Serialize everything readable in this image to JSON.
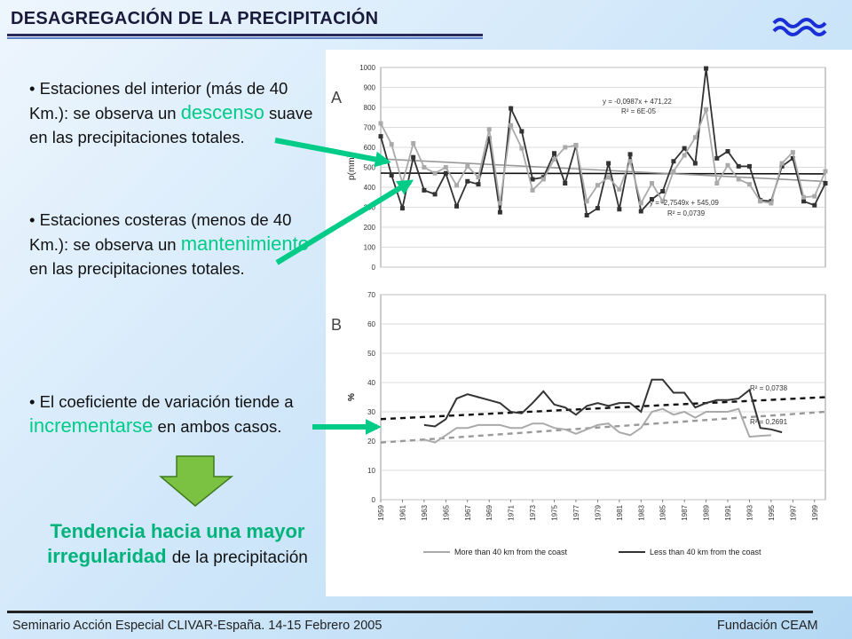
{
  "header": {
    "title": "DESAGREGACIÓN DE LA PRECIPITACIÓN",
    "logo_icon": "wave-logo-icon",
    "accent_color": "#1a2fd6"
  },
  "bullets": [
    {
      "prefix": "• Estaciones  del interior (más de 40 Km.): se observa un",
      "highlight": "descenso",
      "suffix": "suave en las precipitaciones totales."
    },
    {
      "prefix": "• Estaciones costeras (menos de 40 Km.): se observa un",
      "highlight": "mantenimiento",
      "suffix": "en las precipitaciones totales."
    },
    {
      "prefix": "• El coeficiente de variación tiende a",
      "highlight": "incrementarse",
      "suffix": "en ambos casos."
    }
  ],
  "conclusion": {
    "bold": "Tendencia hacia una mayor irregularidad",
    "normal": "de la precipitación"
  },
  "footer": {
    "left": "Seminario Acción Especial CLIVAR-España. 14-15 Febrero 2005",
    "right": "Fundación CEAM"
  },
  "colors": {
    "highlight": "#00cc88",
    "arrow": "#00cc88",
    "down_arrow": "#7cc242",
    "dark_series": "#333333",
    "light_series": "#aaaaaa"
  },
  "chart_data": [
    {
      "type": "line",
      "panel_label": "A",
      "ylabel": "p(mm)",
      "ylim": [
        0,
        1000
      ],
      "yticks": [
        0,
        100,
        200,
        300,
        400,
        500,
        600,
        700,
        800,
        900,
        1000
      ],
      "x": [
        1959,
        1960,
        1961,
        1962,
        1963,
        1964,
        1965,
        1966,
        1967,
        1968,
        1969,
        1970,
        1971,
        1972,
        1973,
        1974,
        1975,
        1976,
        1977,
        1978,
        1979,
        1980,
        1981,
        1982,
        1983,
        1984,
        1985,
        1986,
        1987,
        1988,
        1989,
        1990,
        1991,
        1992,
        1993,
        1994,
        1995,
        1996,
        1997,
        1998,
        1999,
        2000
      ],
      "grid": true,
      "series": [
        {
          "color": "#333333",
          "marker": "square",
          "values": [
            655,
            460,
            295,
            550,
            385,
            365,
            470,
            305,
            430,
            415,
            645,
            275,
            795,
            680,
            440,
            450,
            570,
            420,
            610,
            260,
            295,
            520,
            290,
            565,
            280,
            340,
            380,
            530,
            595,
            520,
            995,
            545,
            580,
            505,
            505,
            335,
            330,
            505,
            545,
            330,
            310,
            420
          ]
        },
        {
          "color": "#aaaaaa",
          "marker": "square",
          "values": [
            720,
            615,
            420,
            620,
            500,
            470,
            500,
            410,
            505,
            450,
            690,
            320,
            710,
            595,
            385,
            440,
            540,
            600,
            610,
            330,
            410,
            450,
            390,
            530,
            320,
            420,
            330,
            480,
            560,
            650,
            790,
            420,
            510,
            440,
            415,
            330,
            320,
            520,
            575,
            350,
            355,
            480
          ]
        }
      ],
      "trendlines": [
        {
          "equation": "y = -0,0987x + 471,22",
          "r2": "R² = 6E-05",
          "start": 471,
          "end": 467
        },
        {
          "equation": "y = -2,7549x + 545,09",
          "r2": "R² = 0,0739",
          "start": 542,
          "end": 429
        }
      ]
    },
    {
      "type": "line",
      "panel_label": "B",
      "ylabel": "%",
      "ylim": [
        0,
        70
      ],
      "yticks": [
        0,
        10,
        20,
        30,
        40,
        50,
        60,
        70
      ],
      "x": [
        1959,
        1960,
        1961,
        1962,
        1963,
        1964,
        1965,
        1966,
        1967,
        1968,
        1969,
        1970,
        1971,
        1972,
        1973,
        1974,
        1975,
        1976,
        1977,
        1978,
        1979,
        1980,
        1981,
        1982,
        1983,
        1984,
        1985,
        1986,
        1987,
        1988,
        1989,
        1990,
        1991,
        1992,
        1993,
        1994,
        1995,
        1996,
        1997,
        1998,
        1999,
        2000
      ],
      "xtick_labels": [
        "1959",
        "1961",
        "1963",
        "1965",
        "1967",
        "1969",
        "1971",
        "1973",
        "1975",
        "1977",
        "1979",
        "1981",
        "1983",
        "1985",
        "1987",
        "1989",
        "1991",
        "1993",
        "1995",
        "1997",
        "1999"
      ],
      "grid": true,
      "series": [
        {
          "name": "More than 40 km from the coast",
          "color": "#aaaaaa",
          "values": [
            null,
            null,
            null,
            null,
            20.5,
            19.5,
            22,
            24.5,
            24.5,
            25.5,
            25.5,
            25.5,
            24.5,
            24.5,
            26,
            26,
            24.5,
            24,
            22.5,
            24,
            25.5,
            26,
            23,
            22,
            24.5,
            30,
            31,
            29,
            30,
            28,
            30,
            30,
            30,
            31,
            21.5,
            21.8,
            22,
            null,
            null,
            null,
            null,
            null
          ]
        },
        {
          "name": "Less than 40 km from the coast",
          "color": "#333333",
          "values": [
            null,
            null,
            null,
            null,
            25.5,
            25,
            27.5,
            34.5,
            36,
            35,
            34,
            33,
            30,
            29.5,
            33,
            37,
            32.5,
            31.5,
            29,
            32,
            33,
            32,
            33,
            33,
            30,
            41,
            41,
            36.5,
            36.5,
            31.5,
            33,
            34,
            34,
            34.5,
            37.5,
            24.5,
            24,
            23,
            null,
            null,
            null,
            null
          ]
        }
      ],
      "trendlines": [
        {
          "r2": "R² = 0,0738",
          "color": "#111111",
          "start": 27.5,
          "end": 35
        },
        {
          "r2": "R² = 0,2691",
          "color": "#999999",
          "start": 19.5,
          "end": 30
        }
      ]
    }
  ]
}
